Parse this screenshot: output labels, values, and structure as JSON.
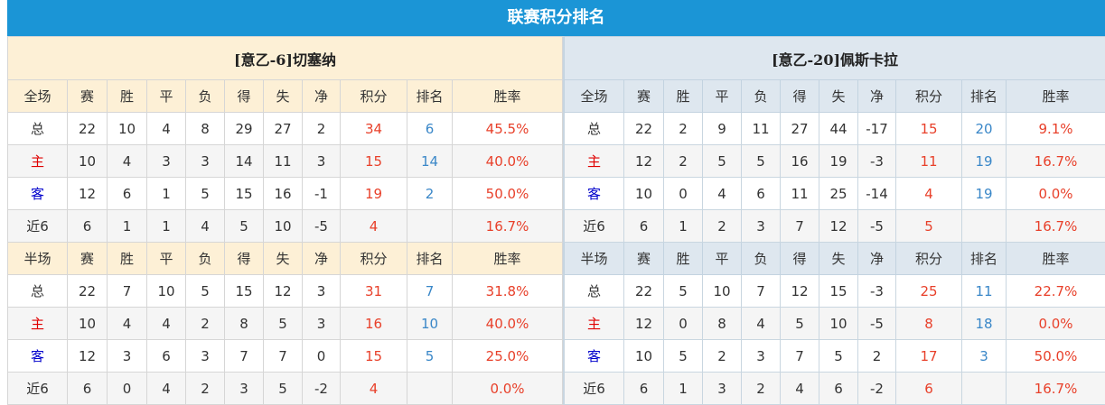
{
  "title": "联赛积分排名",
  "columns": [
    "赛",
    "胜",
    "平",
    "负",
    "得",
    "失",
    "净",
    "积分",
    "排名",
    "胜率"
  ],
  "colors": {
    "header": "#1b95d6",
    "points": "#e8402a",
    "rank": "#3a87c8",
    "home": "#e00000",
    "away": "#0000cc"
  },
  "panels": [
    {
      "team": "[意乙-6]切塞纳",
      "sections": [
        {
          "label": "全场",
          "rows": [
            {
              "type": "总",
              "values": [
                "22",
                "10",
                "4",
                "8",
                "29",
                "27",
                "2",
                "34",
                "6",
                "45.5%"
              ]
            },
            {
              "type": "主",
              "values": [
                "10",
                "4",
                "3",
                "3",
                "14",
                "11",
                "3",
                "15",
                "14",
                "40.0%"
              ]
            },
            {
              "type": "客",
              "values": [
                "12",
                "6",
                "1",
                "5",
                "15",
                "16",
                "-1",
                "19",
                "2",
                "50.0%"
              ]
            },
            {
              "type": "近6",
              "values": [
                "6",
                "1",
                "1",
                "4",
                "5",
                "10",
                "-5",
                "4",
                "",
                "16.7%"
              ]
            }
          ]
        },
        {
          "label": "半场",
          "rows": [
            {
              "type": "总",
              "values": [
                "22",
                "7",
                "10",
                "5",
                "15",
                "12",
                "3",
                "31",
                "7",
                "31.8%"
              ]
            },
            {
              "type": "主",
              "values": [
                "10",
                "4",
                "4",
                "2",
                "8",
                "5",
                "3",
                "16",
                "10",
                "40.0%"
              ]
            },
            {
              "type": "客",
              "values": [
                "12",
                "3",
                "6",
                "3",
                "7",
                "7",
                "0",
                "15",
                "5",
                "25.0%"
              ]
            },
            {
              "type": "近6",
              "values": [
                "6",
                "0",
                "4",
                "2",
                "3",
                "5",
                "-2",
                "4",
                "",
                "0.0%"
              ]
            }
          ]
        }
      ]
    },
    {
      "team": "[意乙-20]佩斯卡拉",
      "sections": [
        {
          "label": "全场",
          "rows": [
            {
              "type": "总",
              "values": [
                "22",
                "2",
                "9",
                "11",
                "27",
                "44",
                "-17",
                "15",
                "20",
                "9.1%"
              ]
            },
            {
              "type": "主",
              "values": [
                "12",
                "2",
                "5",
                "5",
                "16",
                "19",
                "-3",
                "11",
                "19",
                "16.7%"
              ]
            },
            {
              "type": "客",
              "values": [
                "10",
                "0",
                "4",
                "6",
                "11",
                "25",
                "-14",
                "4",
                "19",
                "0.0%"
              ]
            },
            {
              "type": "近6",
              "values": [
                "6",
                "1",
                "2",
                "3",
                "7",
                "12",
                "-5",
                "5",
                "",
                "16.7%"
              ]
            }
          ]
        },
        {
          "label": "半场",
          "rows": [
            {
              "type": "总",
              "values": [
                "22",
                "5",
                "10",
                "7",
                "12",
                "15",
                "-3",
                "25",
                "11",
                "22.7%"
              ]
            },
            {
              "type": "主",
              "values": [
                "12",
                "0",
                "8",
                "4",
                "5",
                "10",
                "-5",
                "8",
                "18",
                "0.0%"
              ]
            },
            {
              "type": "客",
              "values": [
                "10",
                "5",
                "2",
                "3",
                "7",
                "5",
                "2",
                "17",
                "3",
                "50.0%"
              ]
            },
            {
              "type": "近6",
              "values": [
                "6",
                "1",
                "3",
                "2",
                "4",
                "6",
                "-2",
                "6",
                "",
                "16.7%"
              ]
            }
          ]
        }
      ]
    }
  ]
}
